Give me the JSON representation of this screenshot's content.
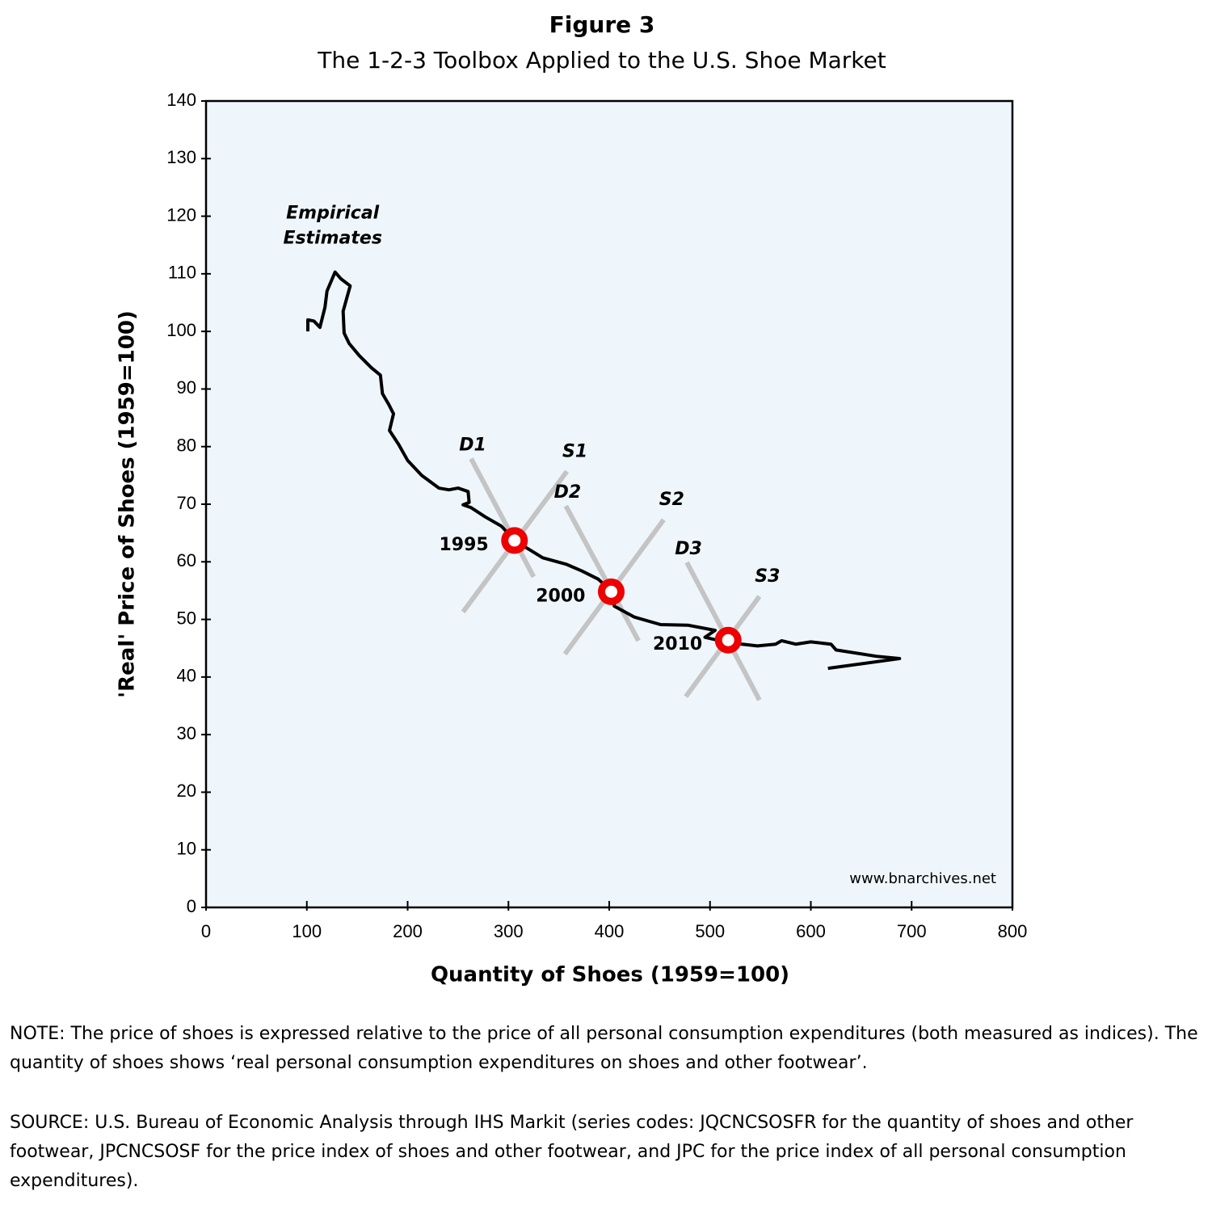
{
  "chart_data": {
    "type": "line",
    "title": "Figure 3",
    "subtitle": "The 1-2-3 Toolbox Applied to the U.S. Shoe Market",
    "xlabel": "Quantity of Shoes (1959=100)",
    "ylabel": "'Real' Price of Shoes (1959=100)",
    "color": "#000000",
    "background": "#eef6fc",
    "x": [
      101,
      101,
      107,
      113,
      118,
      120,
      128,
      134,
      143,
      136,
      137,
      142,
      152,
      164,
      173,
      175,
      181,
      186,
      182,
      191,
      200,
      214,
      231,
      241,
      250,
      260,
      261,
      255,
      263,
      277,
      293,
      306,
      321,
      334,
      357,
      373,
      389,
      403,
      405,
      425,
      451,
      478,
      505,
      495,
      517,
      547,
      565,
      571,
      585,
      600,
      620,
      625,
      665,
      688,
      617
    ],
    "values": [
      100.0,
      102.0,
      101.8,
      100.7,
      104.2,
      107.0,
      110.3,
      109.1,
      107.9,
      103.5,
      99.7,
      97.9,
      95.8,
      93.7,
      92.4,
      89.2,
      87.4,
      85.7,
      82.8,
      80.4,
      77.6,
      75.0,
      72.8,
      72.5,
      72.8,
      72.2,
      70.3,
      69.9,
      69.4,
      67.8,
      66.2,
      63.7,
      62.1,
      60.7,
      59.6,
      58.4,
      57.0,
      54.8,
      52.3,
      50.4,
      49.1,
      49.0,
      48.1,
      46.9,
      46.0,
      45.4,
      45.7,
      46.3,
      45.7,
      46.1,
      45.7,
      44.7,
      43.6,
      43.2,
      41.5
    ],
    "line_annotation": [
      "Empirical",
      "Estimates"
    ],
    "curves": [
      {
        "label": "D1",
        "kind": "demand",
        "x": [
          263,
          325
        ],
        "y": [
          77.9,
          57.4
        ]
      },
      {
        "label": "S1",
        "kind": "supply",
        "x": [
          255,
          358
        ],
        "y": [
          51.3,
          75.7
        ]
      },
      {
        "label": "D2",
        "kind": "demand",
        "x": [
          357,
          429
        ],
        "y": [
          69.7,
          46.3
        ]
      },
      {
        "label": "S2",
        "kind": "supply",
        "x": [
          356,
          454
        ],
        "y": [
          44.0,
          67.3
        ]
      },
      {
        "label": "D3",
        "kind": "demand",
        "x": [
          477,
          549
        ],
        "y": [
          59.9,
          36.0
        ]
      },
      {
        "label": "S3",
        "kind": "supply",
        "x": [
          476,
          549
        ],
        "y": [
          36.6,
          54.0
        ]
      }
    ],
    "curve_color": "#c4c4c4",
    "points": [
      {
        "label": "1995",
        "x": 306,
        "y": 63.7
      },
      {
        "label": "2000",
        "x": 402,
        "y": 54.8
      },
      {
        "label": "2010",
        "x": 518,
        "y": 46.4
      }
    ],
    "point_color": "#ee0000",
    "watermark": "www.bnarchives.net",
    "xlim": [
      0,
      800
    ],
    "xticks": [
      0,
      100,
      200,
      300,
      400,
      500,
      600,
      700,
      800
    ],
    "ylim": [
      0,
      140
    ],
    "yticks": [
      0,
      10,
      20,
      30,
      40,
      50,
      60,
      70,
      80,
      90,
      100,
      110,
      120,
      130,
      140
    ]
  },
  "note": "NOTE: The price of shoes is expressed relative to the price of all personal consumption expenditures (both measured as indices). The quantity of shoes shows ‘real personal consumption expenditures on shoes and other footwear’.",
  "source": "SOURCE: U.S. Bureau of Economic Analysis through IHS Markit (series codes: JQCNCSOSFR for the quantity of shoes and other footwear, JPCNCSOSF for the price index of shoes and other footwear, and JPC for the price index of all personal consumption expenditures)."
}
